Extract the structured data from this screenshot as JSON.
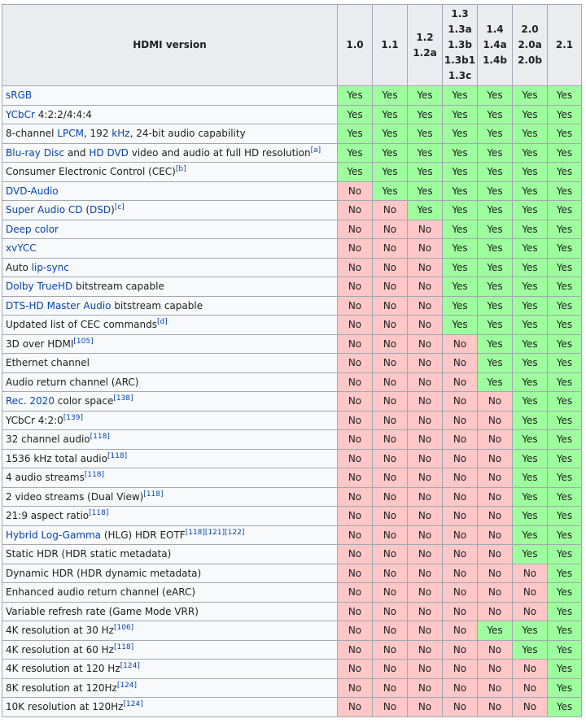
{
  "header": {
    "feature": "HDMI version",
    "versions": [
      [
        "1.0"
      ],
      [
        "1.1"
      ],
      [
        "1.2",
        "1.2a"
      ],
      [
        "1.3",
        "1.3a",
        "1.3b",
        "1.3b1",
        "1.3c"
      ],
      [
        "1.4",
        "1.4a",
        "1.4b"
      ],
      [
        "2.0",
        "2.0a",
        "2.0b"
      ],
      [
        "2.1"
      ]
    ]
  },
  "status_colors": {
    "yes": "#9eff9e",
    "no": "#ffc7c7"
  },
  "rows": [
    {
      "parts": [
        {
          "t": "sRGB",
          "link": true
        }
      ],
      "values": [
        "Yes",
        "Yes",
        "Yes",
        "Yes",
        "Yes",
        "Yes",
        "Yes"
      ]
    },
    {
      "parts": [
        {
          "t": "YCbCr",
          "link": true
        },
        {
          "t": " 4:2:2/4:4:4"
        }
      ],
      "values": [
        "Yes",
        "Yes",
        "Yes",
        "Yes",
        "Yes",
        "Yes",
        "Yes"
      ]
    },
    {
      "parts": [
        {
          "t": "8-channel "
        },
        {
          "t": "LPCM",
          "link": true
        },
        {
          "t": ", 192 "
        },
        {
          "t": "kHz",
          "link": true
        },
        {
          "t": ", 24-bit audio capability"
        }
      ],
      "values": [
        "Yes",
        "Yes",
        "Yes",
        "Yes",
        "Yes",
        "Yes",
        "Yes"
      ]
    },
    {
      "parts": [
        {
          "t": "Blu-ray Disc",
          "link": true
        },
        {
          "t": " and "
        },
        {
          "t": "HD DVD",
          "link": true
        },
        {
          "t": " video and audio at full HD resolution"
        },
        {
          "t": "[a]",
          "sup": true
        }
      ],
      "values": [
        "Yes",
        "Yes",
        "Yes",
        "Yes",
        "Yes",
        "Yes",
        "Yes"
      ]
    },
    {
      "parts": [
        {
          "t": "Consumer Electronic Control (CEC)"
        },
        {
          "t": "[b]",
          "sup": true
        }
      ],
      "values": [
        "Yes",
        "Yes",
        "Yes",
        "Yes",
        "Yes",
        "Yes",
        "Yes"
      ]
    },
    {
      "parts": [
        {
          "t": "DVD-Audio",
          "link": true
        }
      ],
      "values": [
        "No",
        "Yes",
        "Yes",
        "Yes",
        "Yes",
        "Yes",
        "Yes"
      ]
    },
    {
      "parts": [
        {
          "t": "Super Audio CD",
          "link": true
        },
        {
          "t": " ("
        },
        {
          "t": "DSD",
          "link": true
        },
        {
          "t": ")"
        },
        {
          "t": "[c]",
          "sup": true
        }
      ],
      "values": [
        "No",
        "No",
        "Yes",
        "Yes",
        "Yes",
        "Yes",
        "Yes"
      ]
    },
    {
      "parts": [
        {
          "t": "Deep color",
          "link": true
        }
      ],
      "values": [
        "No",
        "No",
        "No",
        "Yes",
        "Yes",
        "Yes",
        "Yes"
      ]
    },
    {
      "parts": [
        {
          "t": "xvYCC",
          "link": true
        }
      ],
      "values": [
        "No",
        "No",
        "No",
        "Yes",
        "Yes",
        "Yes",
        "Yes"
      ]
    },
    {
      "parts": [
        {
          "t": "Auto "
        },
        {
          "t": "lip-sync",
          "link": true
        }
      ],
      "values": [
        "No",
        "No",
        "No",
        "Yes",
        "Yes",
        "Yes",
        "Yes"
      ]
    },
    {
      "parts": [
        {
          "t": "Dolby TrueHD",
          "link": true
        },
        {
          "t": " bitstream capable"
        }
      ],
      "values": [
        "No",
        "No",
        "No",
        "Yes",
        "Yes",
        "Yes",
        "Yes"
      ]
    },
    {
      "parts": [
        {
          "t": "DTS-HD Master Audio",
          "link": true
        },
        {
          "t": " bitstream capable"
        }
      ],
      "values": [
        "No",
        "No",
        "No",
        "Yes",
        "Yes",
        "Yes",
        "Yes"
      ]
    },
    {
      "parts": [
        {
          "t": "Updated list of CEC commands"
        },
        {
          "t": "[d]",
          "sup": true
        }
      ],
      "values": [
        "No",
        "No",
        "No",
        "Yes",
        "Yes",
        "Yes",
        "Yes"
      ]
    },
    {
      "parts": [
        {
          "t": "3D over HDMI"
        },
        {
          "t": "[105]",
          "sup": true
        }
      ],
      "values": [
        "No",
        "No",
        "No",
        "No",
        "Yes",
        "Yes",
        "Yes"
      ]
    },
    {
      "parts": [
        {
          "t": "Ethernet channel"
        }
      ],
      "values": [
        "No",
        "No",
        "No",
        "No",
        "Yes",
        "Yes",
        "Yes"
      ]
    },
    {
      "parts": [
        {
          "t": "Audio return channel (ARC)"
        }
      ],
      "values": [
        "No",
        "No",
        "No",
        "No",
        "Yes",
        "Yes",
        "Yes"
      ]
    },
    {
      "parts": [
        {
          "t": "Rec. 2020",
          "link": true
        },
        {
          "t": " color space"
        },
        {
          "t": "[138]",
          "sup": true
        }
      ],
      "values": [
        "No",
        "No",
        "No",
        "No",
        "No",
        "Yes",
        "Yes"
      ]
    },
    {
      "parts": [
        {
          "t": "YCbCr 4:2:0"
        },
        {
          "t": "[139]",
          "sup": true
        }
      ],
      "values": [
        "No",
        "No",
        "No",
        "No",
        "No",
        "Yes",
        "Yes"
      ]
    },
    {
      "parts": [
        {
          "t": "32 channel audio"
        },
        {
          "t": "[118]",
          "sup": true
        }
      ],
      "values": [
        "No",
        "No",
        "No",
        "No",
        "No",
        "Yes",
        "Yes"
      ]
    },
    {
      "parts": [
        {
          "t": "1536 kHz total audio"
        },
        {
          "t": "[118]",
          "sup": true
        }
      ],
      "values": [
        "No",
        "No",
        "No",
        "No",
        "No",
        "Yes",
        "Yes"
      ]
    },
    {
      "parts": [
        {
          "t": "4 audio streams"
        },
        {
          "t": "[118]",
          "sup": true
        }
      ],
      "values": [
        "No",
        "No",
        "No",
        "No",
        "No",
        "Yes",
        "Yes"
      ]
    },
    {
      "parts": [
        {
          "t": "2 video streams (Dual View)"
        },
        {
          "t": "[118]",
          "sup": true
        }
      ],
      "values": [
        "No",
        "No",
        "No",
        "No",
        "No",
        "Yes",
        "Yes"
      ]
    },
    {
      "parts": [
        {
          "t": "21:9 aspect ratio"
        },
        {
          "t": "[118]",
          "sup": true
        }
      ],
      "values": [
        "No",
        "No",
        "No",
        "No",
        "No",
        "Yes",
        "Yes"
      ]
    },
    {
      "parts": [
        {
          "t": "Hybrid Log-Gamma",
          "link": true
        },
        {
          "t": " (HLG) HDR EOTF"
        },
        {
          "t": "[118]",
          "sup": true
        },
        {
          "t": "[121]",
          "sup": true
        },
        {
          "t": "[122]",
          "sup": true
        }
      ],
      "values": [
        "No",
        "No",
        "No",
        "No",
        "No",
        "Yes",
        "Yes"
      ]
    },
    {
      "parts": [
        {
          "t": "Static HDR (HDR static metadata)"
        }
      ],
      "values": [
        "No",
        "No",
        "No",
        "No",
        "No",
        "Yes",
        "Yes"
      ]
    },
    {
      "parts": [
        {
          "t": "Dynamic HDR (HDR dynamic metadata)"
        }
      ],
      "values": [
        "No",
        "No",
        "No",
        "No",
        "No",
        "No",
        "Yes"
      ]
    },
    {
      "parts": [
        {
          "t": "Enhanced audio return channel (eARC)"
        }
      ],
      "values": [
        "No",
        "No",
        "No",
        "No",
        "No",
        "No",
        "Yes"
      ]
    },
    {
      "parts": [
        {
          "t": "Variable refresh rate (Game Mode VRR)"
        }
      ],
      "values": [
        "No",
        "No",
        "No",
        "No",
        "No",
        "No",
        "Yes"
      ]
    },
    {
      "parts": [
        {
          "t": "4K resolution at 30 Hz"
        },
        {
          "t": "[106]",
          "sup": true
        }
      ],
      "values": [
        "No",
        "No",
        "No",
        "No",
        "Yes",
        "Yes",
        "Yes"
      ]
    },
    {
      "parts": [
        {
          "t": "4K resolution at 60 Hz"
        },
        {
          "t": "[118]",
          "sup": true
        }
      ],
      "values": [
        "No",
        "No",
        "No",
        "No",
        "No",
        "Yes",
        "Yes"
      ]
    },
    {
      "parts": [
        {
          "t": "4K resolution at 120 Hz"
        },
        {
          "t": "[124]",
          "sup": true
        }
      ],
      "values": [
        "No",
        "No",
        "No",
        "No",
        "No",
        "No",
        "Yes"
      ]
    },
    {
      "parts": [
        {
          "t": "8K resolution at 120Hz"
        },
        {
          "t": "[124]",
          "sup": true
        }
      ],
      "values": [
        "No",
        "No",
        "No",
        "No",
        "No",
        "No",
        "Yes"
      ]
    },
    {
      "parts": [
        {
          "t": "10K resolution at 120Hz"
        },
        {
          "t": "[124]",
          "sup": true
        }
      ],
      "values": [
        "No",
        "No",
        "No",
        "No",
        "No",
        "No",
        "Yes"
      ]
    }
  ]
}
